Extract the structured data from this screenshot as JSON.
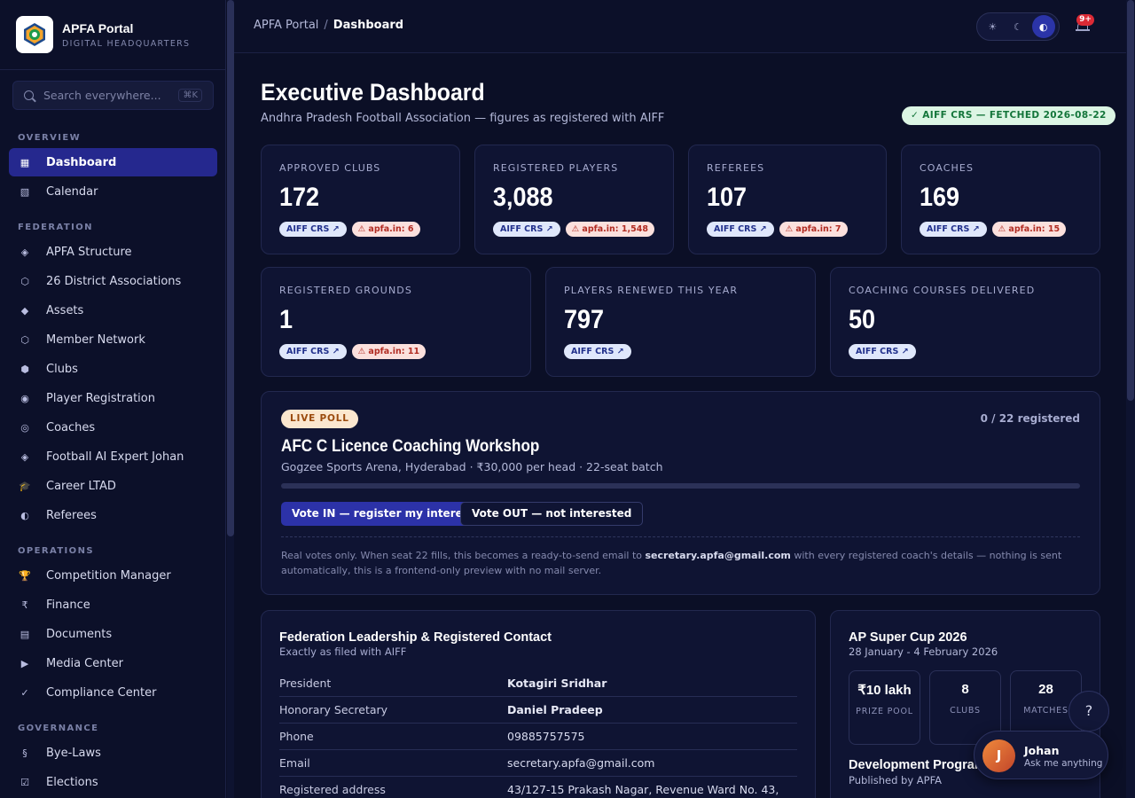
{
  "brand": {
    "title": "APFA Portal",
    "subtitle": "DIGITAL HEADQUARTERS"
  },
  "search": {
    "placeholder": "Search everywhere...",
    "shortcut": "⌘K"
  },
  "nav": {
    "sections": [
      {
        "label": "OVERVIEW",
        "items": [
          {
            "label": "Dashboard",
            "icon": "grid-icon",
            "glyph": "▦",
            "active": true
          },
          {
            "label": "Calendar",
            "icon": "calendar-icon",
            "glyph": "▧"
          }
        ]
      },
      {
        "label": "FEDERATION",
        "items": [
          {
            "label": "APFA Structure",
            "icon": "structure-icon",
            "glyph": "◈"
          },
          {
            "label": "26 District Associations",
            "icon": "district-icon",
            "glyph": "⬡"
          },
          {
            "label": "Assets",
            "icon": "assets-icon",
            "glyph": "◆"
          },
          {
            "label": "Member Network",
            "icon": "network-icon",
            "glyph": "⬡"
          },
          {
            "label": "Clubs",
            "icon": "clubs-icon",
            "glyph": "⬢"
          },
          {
            "label": "Player Registration",
            "icon": "player-icon",
            "glyph": "◉"
          },
          {
            "label": "Coaches",
            "icon": "coach-icon",
            "glyph": "◎"
          },
          {
            "label": "Football AI Expert Johan",
            "icon": "ai-icon",
            "glyph": "◈"
          },
          {
            "label": "Career LTAD",
            "icon": "graduation-cap-icon",
            "glyph": "🎓"
          },
          {
            "label": "Referees",
            "icon": "referee-icon",
            "glyph": "◐"
          }
        ]
      },
      {
        "label": "OPERATIONS",
        "items": [
          {
            "label": "Competition Manager",
            "icon": "trophy-icon",
            "glyph": "🏆"
          },
          {
            "label": "Finance",
            "icon": "rupee-icon",
            "glyph": "₹"
          },
          {
            "label": "Documents",
            "icon": "document-icon",
            "glyph": "▤"
          },
          {
            "label": "Media Center",
            "icon": "play-icon",
            "glyph": "▶"
          },
          {
            "label": "Compliance Center",
            "icon": "check-icon",
            "glyph": "✓"
          }
        ]
      },
      {
        "label": "GOVERNANCE",
        "items": [
          {
            "label": "Bye-Laws",
            "icon": "section-icon",
            "glyph": "§"
          },
          {
            "label": "Elections",
            "icon": "ballot-icon",
            "glyph": "☑"
          }
        ]
      }
    ]
  },
  "topbar": {
    "breadcrumb_root": "APFA Portal",
    "breadcrumb_sep": "/",
    "breadcrumb_current": "Dashboard",
    "theme_light_glyph": "☀",
    "theme_dark_glyph": "☾",
    "theme_auto_glyph": "◐",
    "notifications_badge": "9+"
  },
  "header": {
    "title": "Executive Dashboard",
    "subtitle": "Andhra Pradesh Football Association — figures as registered with AIFF",
    "crs_badge": "✓ AIFF CRS — FETCHED 2026-08-22"
  },
  "stats_row1": [
    {
      "label": "APPROVED CLUBS",
      "value": "172",
      "crs": "AIFF CRS ↗",
      "warn": "⚠ apfa.in: 6"
    },
    {
      "label": "REGISTERED PLAYERS",
      "value": "3,088",
      "crs": "AIFF CRS ↗",
      "warn": "⚠ apfa.in: 1,548"
    },
    {
      "label": "REFEREES",
      "value": "107",
      "crs": "AIFF CRS ↗",
      "warn": "⚠ apfa.in: 7"
    },
    {
      "label": "COACHES",
      "value": "169",
      "crs": "AIFF CRS ↗",
      "warn": "⚠ apfa.in: 15"
    }
  ],
  "stats_row2": [
    {
      "label": "REGISTERED GROUNDS",
      "value": "1",
      "crs": "AIFF CRS ↗",
      "warn": "⚠ apfa.in: 11"
    },
    {
      "label": "PLAYERS RENEWED THIS YEAR",
      "value": "797",
      "crs": "AIFF CRS ↗"
    },
    {
      "label": "COACHING COURSES DELIVERED",
      "value": "50",
      "crs": "AIFF CRS ↗"
    }
  ],
  "poll": {
    "badge": "LIVE POLL",
    "count": "0 / 22 registered",
    "progress": 0,
    "title": "AFC C Licence Coaching Workshop",
    "subtitle": "Gogzee Sports Arena, Hyderabad · ₹30,000 per head · 22-seat batch",
    "vote_in": "Vote IN — register my interest",
    "vote_out": "Vote OUT — not interested",
    "note_before": "Real votes only. When seat 22 fills, this becomes a ready-to-send email to ",
    "note_email": "secretary.apfa@gmail.com",
    "note_after": " with every registered coach's details — nothing is sent automatically, this is a frontend-only preview with no mail server."
  },
  "leadership": {
    "title": "Federation Leadership & Registered Contact",
    "subtitle": "Exactly as filed with AIFF",
    "rows": [
      {
        "key": "President",
        "value": "Kotagiri Sridhar",
        "bold": true
      },
      {
        "key": "Honorary Secretary",
        "value": "Daniel Pradeep",
        "bold": true
      },
      {
        "key": "Phone",
        "value": "09885757575"
      },
      {
        "key": "Email",
        "value": "secretary.apfa@gmail.com"
      },
      {
        "key": "Registered address",
        "value": "43/127-15 Prakash Nagar, Revenue Ward No. 43,"
      }
    ]
  },
  "supercup": {
    "title": "AP Super Cup 2026",
    "dates": "28 January - 4 February 2026",
    "stats": [
      {
        "value": "₹10 lakh",
        "label": "PRIZE POOL"
      },
      {
        "value": "8",
        "label": "CLUBS"
      },
      {
        "value": "28",
        "label": "MATCHES"
      }
    ],
    "dev_title": "Development Programmes",
    "dev_sub": "Published by APFA"
  },
  "assistant": {
    "help": "?",
    "initial": "J",
    "name": "Johan",
    "tagline": "Ask me anything"
  }
}
